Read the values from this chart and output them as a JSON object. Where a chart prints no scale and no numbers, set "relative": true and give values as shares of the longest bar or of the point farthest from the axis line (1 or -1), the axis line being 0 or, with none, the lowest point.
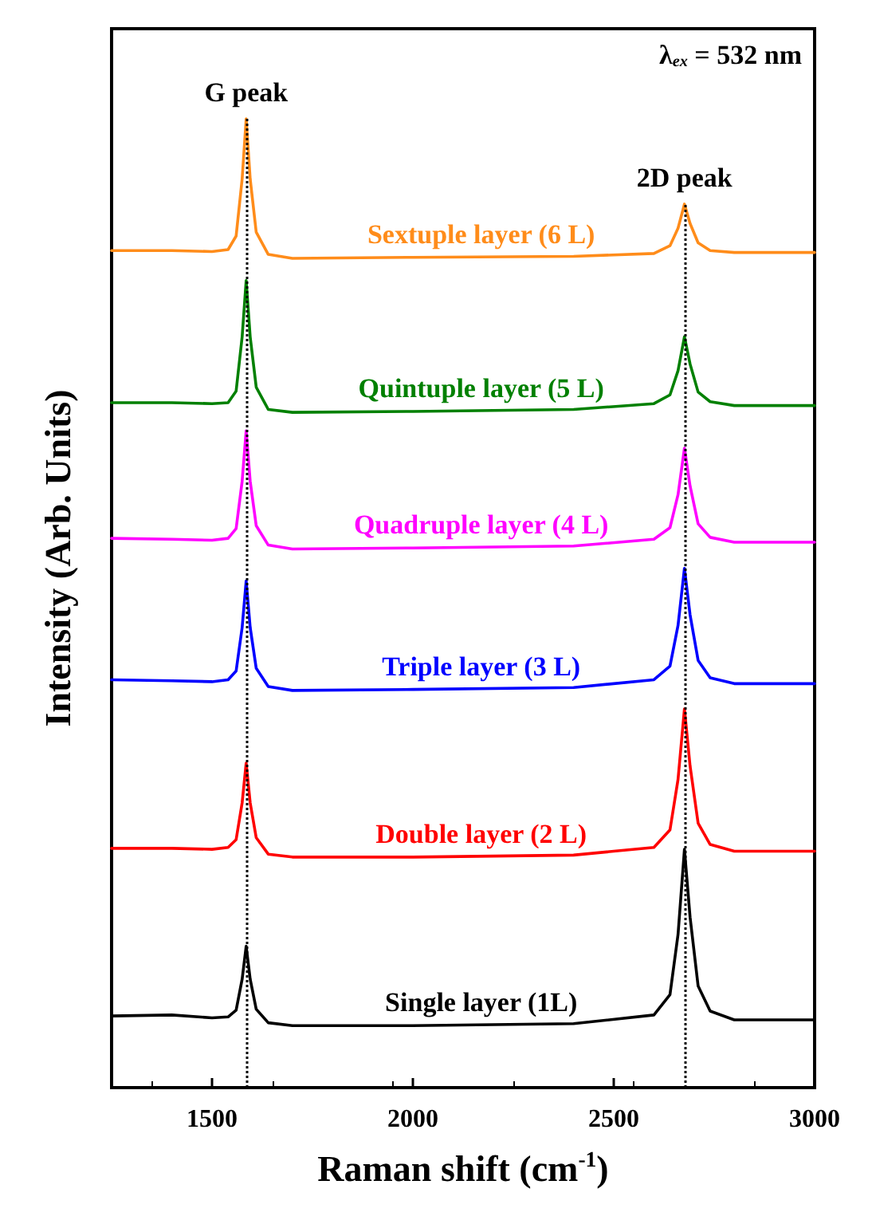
{
  "chart_data": {
    "type": "line",
    "relative": true,
    "xlabel": "Raman shift (cm$^{-1}$)",
    "ylabel": "Intensity (Arb. Units)",
    "xlim": [
      1250,
      3000
    ],
    "xticks": [
      1500,
      2000,
      2500,
      3000
    ],
    "tick_labels": "x",
    "grid": false,
    "legend": false,
    "marker": "none",
    "line_style": "solid",
    "annotations": [
      "λ$_{ex}$ = 532 nm"
    ],
    "ref_lines": [
      {
        "axis": "x",
        "value": 1585,
        "label": "G peak",
        "color": "#000000",
        "line_style": "dotted"
      },
      {
        "axis": "x",
        "value": 2676,
        "label": "2D peak",
        "color": "#000000",
        "line_style": "dotted"
      }
    ],
    "series": [
      {
        "name": "Single layer (1L)",
        "color": "#000000",
        "x": [
          1250,
          1400,
          1500,
          1540,
          1560,
          1575,
          1585,
          1595,
          1610,
          1640,
          1700,
          2000,
          2400,
          2600,
          2640,
          2660,
          2676,
          2690,
          2710,
          2740,
          2800,
          3000
        ],
        "values": [
          0.074,
          0.075,
          0.072,
          0.073,
          0.08,
          0.112,
          0.146,
          0.112,
          0.081,
          0.067,
          0.064,
          0.064,
          0.066,
          0.075,
          0.096,
          0.158,
          0.246,
          0.176,
          0.105,
          0.079,
          0.07,
          0.07
        ]
      },
      {
        "name": "Double layer (2 L)",
        "color": "#ff0000",
        "x": [
          1250,
          1400,
          1500,
          1540,
          1560,
          1575,
          1585,
          1595,
          1610,
          1640,
          1700,
          2000,
          2400,
          2600,
          2640,
          2660,
          2676,
          2690,
          2710,
          2740,
          2800,
          3000
        ],
        "values": [
          0.247,
          0.247,
          0.246,
          0.248,
          0.256,
          0.294,
          0.335,
          0.294,
          0.258,
          0.241,
          0.238,
          0.238,
          0.24,
          0.248,
          0.266,
          0.318,
          0.391,
          0.332,
          0.273,
          0.251,
          0.244,
          0.244
        ]
      },
      {
        "name": "Triple layer (3 L)",
        "color": "#0000ff",
        "x": [
          1250,
          1400,
          1500,
          1540,
          1560,
          1575,
          1585,
          1595,
          1610,
          1640,
          1700,
          2000,
          2400,
          2600,
          2640,
          2660,
          2676,
          2690,
          2710,
          2740,
          2800,
          3000
        ],
        "values": [
          0.421,
          0.42,
          0.419,
          0.421,
          0.43,
          0.475,
          0.523,
          0.475,
          0.433,
          0.414,
          0.41,
          0.411,
          0.413,
          0.421,
          0.435,
          0.477,
          0.536,
          0.488,
          0.441,
          0.423,
          0.417,
          0.417
        ]
      },
      {
        "name": "Quadruple layer (4 L)",
        "color": "#ff00ff",
        "x": [
          1250,
          1400,
          1500,
          1540,
          1560,
          1575,
          1585,
          1595,
          1610,
          1640,
          1700,
          2000,
          2400,
          2600,
          2640,
          2660,
          2676,
          2690,
          2710,
          2740,
          2800,
          3000
        ],
        "values": [
          0.567,
          0.566,
          0.565,
          0.567,
          0.577,
          0.626,
          0.678,
          0.626,
          0.58,
          0.56,
          0.556,
          0.557,
          0.559,
          0.566,
          0.578,
          0.612,
          0.66,
          0.621,
          0.582,
          0.568,
          0.563,
          0.563
        ]
      },
      {
        "name": "Quintuple layer (5 L)",
        "color": "#008000",
        "x": [
          1250,
          1400,
          1500,
          1540,
          1560,
          1575,
          1585,
          1595,
          1610,
          1640,
          1700,
          2000,
          2400,
          2600,
          2640,
          2660,
          2676,
          2690,
          2710,
          2740,
          2800,
          3000
        ],
        "values": [
          0.707,
          0.707,
          0.706,
          0.707,
          0.719,
          0.775,
          0.833,
          0.775,
          0.723,
          0.7,
          0.697,
          0.698,
          0.7,
          0.706,
          0.715,
          0.74,
          0.775,
          0.747,
          0.718,
          0.708,
          0.704,
          0.704
        ]
      },
      {
        "name": "Sextuple layer (6 L)",
        "color": "#ff8c1a",
        "x": [
          1250,
          1400,
          1500,
          1540,
          1560,
          1575,
          1585,
          1595,
          1610,
          1640,
          1700,
          2000,
          2400,
          2600,
          2640,
          2660,
          2676,
          2690,
          2710,
          2740,
          2800,
          3000
        ],
        "values": [
          0.864,
          0.864,
          0.863,
          0.865,
          0.879,
          0.938,
          1.0,
          0.938,
          0.883,
          0.86,
          0.856,
          0.857,
          0.858,
          0.861,
          0.869,
          0.887,
          0.912,
          0.892,
          0.872,
          0.864,
          0.862,
          0.862
        ]
      }
    ]
  }
}
